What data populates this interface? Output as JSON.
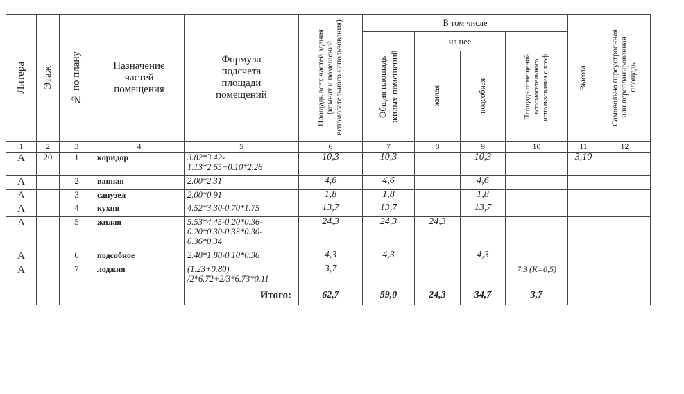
{
  "header": {
    "litera": "Литера",
    "etazh": "Этаж",
    "nomer": "№ по плану",
    "naznachenie": "Назначение частей помещения",
    "formula": "Формула подсчета площади помещений",
    "ploshchad_vseh": "Площадь всех частей здания (комнат и помещений вспомогательного использования)",
    "v_tom_chisle": "В том числе",
    "obshchaya": "Общая площадь жилых помещений",
    "iz_nee": "из нее",
    "zhilaya": "жилая",
    "podsobnaya": "подсобная",
    "vspomogat": "Площадь помещений вспомогательного использования с коэф.",
    "vysota": "Высота",
    "samovolno": "Самовольно переустроенная или перепланированная площадь"
  },
  "column_numbers": [
    "1",
    "2",
    "3",
    "4",
    "5",
    "6",
    "7",
    "8",
    "9",
    "10",
    "11",
    "12"
  ],
  "rows": [
    {
      "litera": "А",
      "etazh": "20",
      "no": "1",
      "name": "коридор",
      "formula": "3.82*3.42-1.13*2.65+0.10*2.26",
      "area": "10,3",
      "total_living": "10,3",
      "living": "",
      "aux": "10,3",
      "balcony": "",
      "height": "3,10",
      "unauth": ""
    },
    {
      "litera": "А",
      "etazh": "",
      "no": "2",
      "name": "ванная",
      "formula": "2.00*2.31",
      "area": "4,6",
      "total_living": "4,6",
      "living": "",
      "aux": "4,6",
      "balcony": "",
      "height": "",
      "unauth": ""
    },
    {
      "litera": "А",
      "etazh": "",
      "no": "3",
      "name": "санузел",
      "formula": "2.00*0.91",
      "area": "1,8",
      "total_living": "1,8",
      "living": "",
      "aux": "1,8",
      "balcony": "",
      "height": "",
      "unauth": ""
    },
    {
      "litera": "А",
      "etazh": "",
      "no": "4",
      "name": "кухня",
      "formula": "4.52*3.30-0.70*1.75",
      "area": "13,7",
      "total_living": "13,7",
      "living": "",
      "aux": "13,7",
      "balcony": "",
      "height": "",
      "unauth": ""
    },
    {
      "litera": "А",
      "etazh": "",
      "no": "5",
      "name": "жилая",
      "formula": "5.53*4.45-0.20*0.36-0.20*0.30-0.33*0.30-0.36*0.34",
      "area": "24,3",
      "total_living": "24,3",
      "living": "24,3",
      "aux": "",
      "balcony": "",
      "height": "",
      "unauth": ""
    },
    {
      "litera": "А",
      "etazh": "",
      "no": "6",
      "name": "подсобное",
      "formula": "2.40*1.80-0.10*0.36",
      "area": "4,3",
      "total_living": "4,3",
      "living": "",
      "aux": "4,3",
      "balcony": "",
      "height": "",
      "unauth": ""
    },
    {
      "litera": "А",
      "etazh": "",
      "no": "7",
      "name": "лоджия",
      "formula": "(1.23+0.80) /2*6.72+2/3*6.73*0.11",
      "area": "3,7",
      "total_living": "",
      "living": "",
      "aux": "",
      "balcony": "7,3 (K=0,5)",
      "height": "",
      "unauth": ""
    }
  ],
  "total": {
    "label": "Итого:",
    "area": "62,7",
    "total_living": "59,0",
    "living": "24,3",
    "aux": "34,7",
    "balcony": "3,7"
  }
}
